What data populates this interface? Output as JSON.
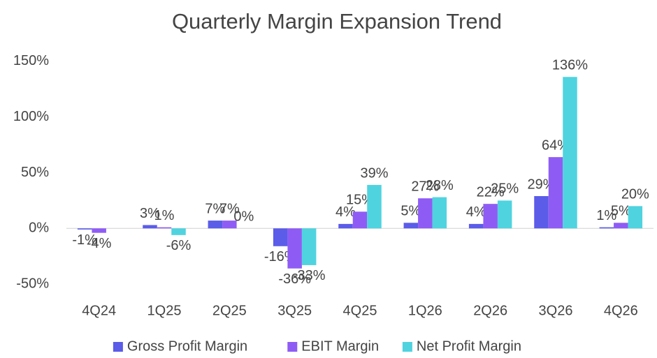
{
  "chart_data": {
    "type": "bar",
    "title": "Quarterly Margin Expansion Trend",
    "categories": [
      "4Q24",
      "1Q25",
      "2Q25",
      "3Q25",
      "4Q25",
      "1Q26",
      "2Q26",
      "3Q26",
      "4Q26"
    ],
    "series": [
      {
        "name": "Gross Profit Margin",
        "color": "#5b5ce8",
        "values": [
          -1,
          3,
          7,
          -16,
          4,
          5,
          4,
          29,
          1
        ],
        "value_labels": [
          "-1%",
          "3%",
          "7%",
          "-16%",
          "4%",
          "5%",
          "4%",
          "29%",
          "1%"
        ]
      },
      {
        "name": "EBIT Margin",
        "color": "#8e5cf5",
        "values": [
          -4,
          1,
          7,
          -36,
          15,
          27,
          22,
          64,
          5
        ],
        "value_labels": [
          "-4%",
          "1%",
          "7%",
          "-36%",
          "15%",
          "27%",
          "22%",
          "64%",
          "5%"
        ]
      },
      {
        "name": "Net Profit Margin",
        "color": "#4fd3df",
        "values": [
          null,
          -6,
          0,
          -33,
          39,
          28,
          25,
          136,
          20
        ],
        "value_labels": [
          null,
          "-6%",
          "0%",
          "-33%",
          "39%",
          "28%",
          "25%",
          "136%",
          "20%"
        ]
      }
    ],
    "ylim": [
      -60,
      170
    ],
    "yticks": [
      {
        "value": -50,
        "label": "-50%"
      },
      {
        "value": 0,
        "label": "0%"
      },
      {
        "value": 50,
        "label": "50%"
      },
      {
        "value": 100,
        "label": "100%"
      },
      {
        "value": 150,
        "label": "150%"
      }
    ],
    "grid": false,
    "legend": "bottom"
  }
}
